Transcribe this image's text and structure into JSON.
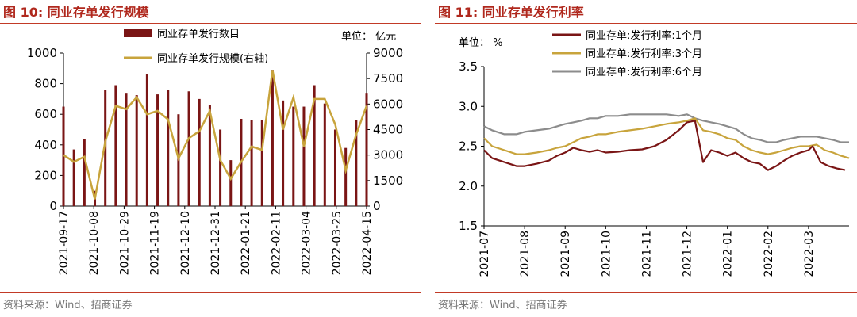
{
  "left": {
    "figure_title": "图 10:  同业存单发行规模",
    "source": "资料来源：Wind、招商证券",
    "chart_data": {
      "type": "bar+line",
      "title": "同业存单发行规模",
      "unit_label": "单位：  亿元",
      "x_ticks": [
        "2021-09-17",
        "2021-10-08",
        "2021-10-29",
        "2021-11-19",
        "2021-12-10",
        "2021-12-31",
        "2022-01-21",
        "2022-02-11",
        "2022-03-04",
        "2022-03-25",
        "2022-04-15"
      ],
      "y_left": {
        "min": 0,
        "max": 1000,
        "ticks": [
          0,
          200,
          400,
          600,
          800,
          1000
        ]
      },
      "y_right": {
        "min": 0,
        "max": 9000,
        "ticks": [
          0,
          1500,
          3000,
          4500,
          6000,
          7500,
          9000
        ],
        "label": "右轴"
      },
      "series": [
        {
          "name": "同业存单发行数目",
          "type": "bar",
          "axis": "left",
          "color": "#7a1515",
          "values": [
            650,
            370,
            440,
            100,
            760,
            790,
            740,
            725,
            860,
            730,
            760,
            600,
            750,
            700,
            660,
            500,
            300,
            570,
            560,
            560,
            890,
            690,
            650,
            650,
            790,
            670,
            500,
            380,
            560,
            740
          ]
        },
        {
          "name": "同业存单发行规模(右轴)",
          "type": "line",
          "axis": "right",
          "color": "#c8a43c",
          "values": [
            3000,
            2600,
            2900,
            400,
            3800,
            5900,
            5700,
            6400,
            5400,
            5600,
            5100,
            2800,
            4000,
            4400,
            5600,
            2700,
            1600,
            2600,
            3500,
            3300,
            8000,
            4500,
            6400,
            3500,
            6300,
            6300,
            4800,
            2100,
            4200,
            5900
          ]
        }
      ]
    }
  },
  "right": {
    "figure_title": "图 11:  同业存单发行利率",
    "source": "资料来源：Wind、招商证券",
    "chart_data": {
      "type": "line",
      "title": "同业存单发行利率",
      "unit_label": "单位：  %",
      "x_ticks": [
        "2021-07",
        "2021-08",
        "2021-09",
        "2021-10",
        "2021-11",
        "2021-12",
        "2022-01",
        "2022-02",
        "2022-03"
      ],
      "y": {
        "min": 1.5,
        "max": 3.5,
        "ticks": [
          "1.5",
          "2.0",
          "2.5",
          "3.0",
          "3.5"
        ]
      },
      "series": [
        {
          "name": "同业存单:发行利率:1个月",
          "color": "#7a1515",
          "points": [
            [
              0,
              2.45
            ],
            [
              0.2,
              2.35
            ],
            [
              0.5,
              2.3
            ],
            [
              0.8,
              2.25
            ],
            [
              1.0,
              2.25
            ],
            [
              1.3,
              2.28
            ],
            [
              1.6,
              2.32
            ],
            [
              1.8,
              2.38
            ],
            [
              2.0,
              2.42
            ],
            [
              2.2,
              2.48
            ],
            [
              2.4,
              2.45
            ],
            [
              2.6,
              2.43
            ],
            [
              2.8,
              2.45
            ],
            [
              3.0,
              2.42
            ],
            [
              3.3,
              2.43
            ],
            [
              3.6,
              2.45
            ],
            [
              3.9,
              2.46
            ],
            [
              4.2,
              2.5
            ],
            [
              4.5,
              2.58
            ],
            [
              4.8,
              2.7
            ],
            [
              5.0,
              2.8
            ],
            [
              5.2,
              2.82
            ],
            [
              5.4,
              2.3
            ],
            [
              5.6,
              2.45
            ],
            [
              5.8,
              2.42
            ],
            [
              6.0,
              2.38
            ],
            [
              6.2,
              2.42
            ],
            [
              6.4,
              2.35
            ],
            [
              6.6,
              2.3
            ],
            [
              6.8,
              2.28
            ],
            [
              7.0,
              2.2
            ],
            [
              7.2,
              2.25
            ],
            [
              7.4,
              2.32
            ],
            [
              7.6,
              2.38
            ],
            [
              7.8,
              2.42
            ],
            [
              8.0,
              2.45
            ],
            [
              8.1,
              2.5
            ],
            [
              8.3,
              2.3
            ],
            [
              8.5,
              2.25
            ],
            [
              8.7,
              2.22
            ],
            [
              8.9,
              2.2
            ]
          ]
        },
        {
          "name": "同业存单:发行利率:3个月",
          "color": "#c8a43c",
          "points": [
            [
              0,
              2.6
            ],
            [
              0.2,
              2.5
            ],
            [
              0.5,
              2.45
            ],
            [
              0.8,
              2.4
            ],
            [
              1.0,
              2.4
            ],
            [
              1.3,
              2.42
            ],
            [
              1.6,
              2.45
            ],
            [
              1.8,
              2.48
            ],
            [
              2.0,
              2.5
            ],
            [
              2.2,
              2.55
            ],
            [
              2.4,
              2.6
            ],
            [
              2.6,
              2.62
            ],
            [
              2.8,
              2.65
            ],
            [
              3.0,
              2.65
            ],
            [
              3.3,
              2.68
            ],
            [
              3.6,
              2.7
            ],
            [
              3.9,
              2.72
            ],
            [
              4.2,
              2.75
            ],
            [
              4.5,
              2.78
            ],
            [
              4.8,
              2.8
            ],
            [
              5.0,
              2.82
            ],
            [
              5.2,
              2.85
            ],
            [
              5.4,
              2.7
            ],
            [
              5.6,
              2.68
            ],
            [
              5.8,
              2.65
            ],
            [
              6.0,
              2.6
            ],
            [
              6.2,
              2.58
            ],
            [
              6.4,
              2.5
            ],
            [
              6.6,
              2.45
            ],
            [
              6.8,
              2.42
            ],
            [
              7.0,
              2.4
            ],
            [
              7.2,
              2.42
            ],
            [
              7.4,
              2.45
            ],
            [
              7.6,
              2.48
            ],
            [
              7.8,
              2.5
            ],
            [
              8.0,
              2.5
            ],
            [
              8.2,
              2.52
            ],
            [
              8.4,
              2.45
            ],
            [
              8.6,
              2.42
            ],
            [
              8.8,
              2.38
            ],
            [
              9.0,
              2.35
            ]
          ]
        },
        {
          "name": "同业存单:发行利率:6个月",
          "color": "#8c8c8c",
          "points": [
            [
              0,
              2.75
            ],
            [
              0.2,
              2.7
            ],
            [
              0.5,
              2.65
            ],
            [
              0.8,
              2.65
            ],
            [
              1.0,
              2.68
            ],
            [
              1.3,
              2.7
            ],
            [
              1.6,
              2.72
            ],
            [
              1.8,
              2.75
            ],
            [
              2.0,
              2.78
            ],
            [
              2.2,
              2.8
            ],
            [
              2.4,
              2.82
            ],
            [
              2.6,
              2.85
            ],
            [
              2.8,
              2.85
            ],
            [
              3.0,
              2.88
            ],
            [
              3.3,
              2.88
            ],
            [
              3.6,
              2.9
            ],
            [
              3.9,
              2.9
            ],
            [
              4.2,
              2.9
            ],
            [
              4.5,
              2.9
            ],
            [
              4.8,
              2.88
            ],
            [
              5.0,
              2.9
            ],
            [
              5.2,
              2.85
            ],
            [
              5.4,
              2.82
            ],
            [
              5.6,
              2.8
            ],
            [
              5.8,
              2.78
            ],
            [
              6.0,
              2.75
            ],
            [
              6.2,
              2.72
            ],
            [
              6.4,
              2.65
            ],
            [
              6.6,
              2.6
            ],
            [
              6.8,
              2.58
            ],
            [
              7.0,
              2.55
            ],
            [
              7.2,
              2.55
            ],
            [
              7.4,
              2.58
            ],
            [
              7.6,
              2.6
            ],
            [
              7.8,
              2.62
            ],
            [
              8.0,
              2.62
            ],
            [
              8.2,
              2.62
            ],
            [
              8.4,
              2.6
            ],
            [
              8.6,
              2.58
            ],
            [
              8.8,
              2.55
            ],
            [
              9.0,
              2.55
            ]
          ]
        }
      ]
    }
  }
}
